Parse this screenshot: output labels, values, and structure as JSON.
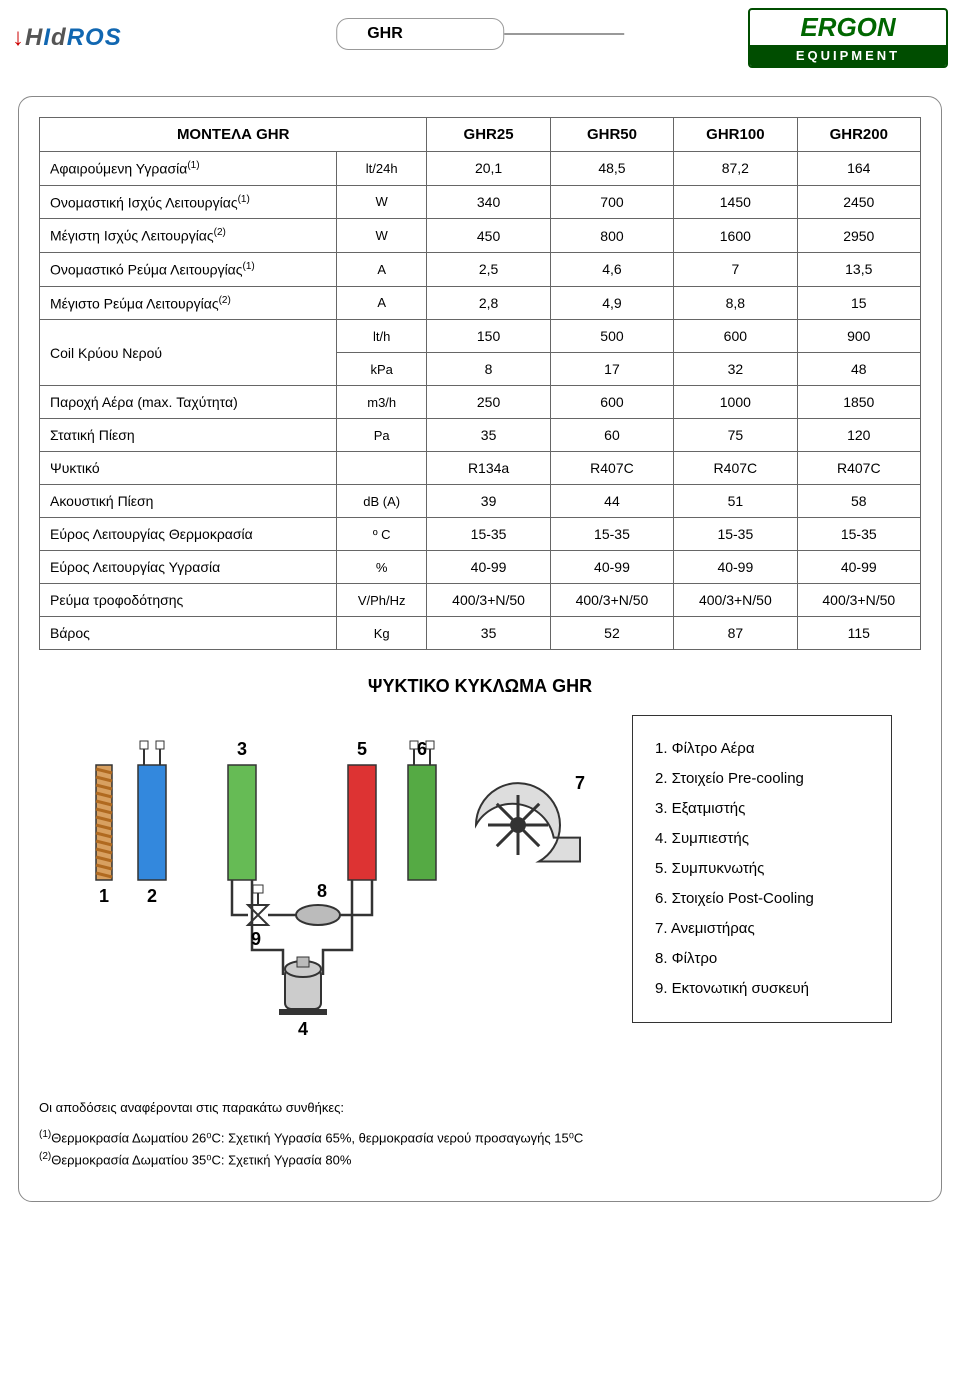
{
  "header": {
    "hidros_logo_html": "<span style='color:#c00;'>&#8595;</span><span style='color:#555;'>H</span><span style='color:#1167b1;'>I</span><span style='color:#555;'>d</span><span style='color:#1167b1;'>ROS</span>",
    "title": "GHR",
    "ergon_top": "ERGON",
    "ergon_bottom": "EQUIPMENT"
  },
  "table": {
    "header_col0": "ΜΟΝΤΕΛΑ GHR",
    "models": [
      "GHR25",
      "GHR50",
      "GHR100",
      "GHR200"
    ],
    "rows": [
      {
        "label": "Αφαιρούμενη Υγρασία",
        "sup": "(1)",
        "unit": "lt/24h",
        "vals": [
          "20,1",
          "48,5",
          "87,2",
          "164"
        ]
      },
      {
        "label": "Ονομαστική Ισχύς Λειτουργίας",
        "sup": "(1)",
        "unit": "W",
        "vals": [
          "340",
          "700",
          "1450",
          "2450"
        ]
      },
      {
        "label": "Μέγιστη Ισχύς Λειτουργίας",
        "sup": "(2)",
        "unit": "W",
        "vals": [
          "450",
          "800",
          "1600",
          "2950"
        ]
      },
      {
        "label": "Ονομαστικό Ρεύμα Λειτουργίας",
        "sup": "(1)",
        "unit": "A",
        "vals": [
          "2,5",
          "4,6",
          "7",
          "13,5"
        ]
      },
      {
        "label": "Μέγιστο Ρεύμα Λειτουργίας",
        "sup": "(2)",
        "unit": "A",
        "vals": [
          "2,8",
          "4,9",
          "8,8",
          "15"
        ]
      }
    ],
    "coil": {
      "label": "Coil Κρύου Νερού",
      "r1": {
        "unit": "lt/h",
        "vals": [
          "150",
          "500",
          "600",
          "900"
        ]
      },
      "r2": {
        "unit": "kPa",
        "vals": [
          "8",
          "17",
          "32",
          "48"
        ]
      }
    },
    "rows2": [
      {
        "label": "Παροχή Αέρα (max. Ταχύτητα)",
        "unit": "m3/h",
        "vals": [
          "250",
          "600",
          "1000",
          "1850"
        ]
      },
      {
        "label": "Στατική Πίεση",
        "unit": "Pa",
        "vals": [
          "35",
          "60",
          "75",
          "120"
        ]
      },
      {
        "label": "Ψυκτικό",
        "unit": "",
        "vals": [
          "R134a",
          "R407C",
          "R407C",
          "R407C"
        ]
      },
      {
        "label": "Ακουστική Πίεση",
        "unit": "dB (A)",
        "vals": [
          "39",
          "44",
          "51",
          "58"
        ]
      },
      {
        "label": "Εύρος Λειτουργίας Θερμοκρασία",
        "unit": "º C",
        "vals": [
          "15-35",
          "15-35",
          "15-35",
          "15-35"
        ]
      },
      {
        "label": "Εύρος  Λειτουργίας Υγρασία",
        "unit": "%",
        "vals": [
          "40-99",
          "40-99",
          "40-99",
          "40-99"
        ]
      },
      {
        "label": "Ρεύμα τροφοδότησης",
        "unit": "V/Ph/Hz",
        "vals": [
          "400/3+N/50",
          "400/3+N/50",
          "400/3+N/50",
          "400/3+N/50"
        ]
      },
      {
        "label": "Βάρος",
        "unit": "Kg",
        "vals": [
          "35",
          "52",
          "87",
          "115"
        ]
      }
    ]
  },
  "diagram": {
    "title": "ΨΥΚΤΙΚΟ ΚΥΚΛΩΜΑ GHR",
    "colors": {
      "filter_outer": "#d8a060",
      "filter_inner": "#b06a20",
      "precool": "#3388dd",
      "evap": "#66bb55",
      "compressor_fill": "#cccccc",
      "condenser": "#dd3333",
      "postcool": "#55aa44",
      "fan_fill": "#dddddd",
      "pipe": "#333333",
      "text": "#000000",
      "device_fill": "#bbbbbb"
    },
    "labels": {
      "n1": "1",
      "n2": "2",
      "n3": "3",
      "n4": "4",
      "n5": "5",
      "n6": "6",
      "n7": "7",
      "n8": "8",
      "n9": "9"
    },
    "legend": [
      "1. Φίλτρο Αέρα",
      "2. Στοιχείο Pre-cooling",
      "3. Εξατμιστής",
      "4. Συμπιεστής",
      "5. Συμπυκνωτής",
      "6. Στοιχείο Post-Cooling",
      "7. Ανεμιστήρας",
      "8. Φίλτρο",
      "9. Εκτονωτική συσκευή"
    ]
  },
  "footnotes": {
    "intro": "Οι αποδόσεις αναφέρονται στις παρακάτω συνθήκες:",
    "l1_pre": "(1)",
    "l1": "Θερμοκρασία Δωματίου 26⁰C: Σχετική Υγρασία 65%, θερμοκρασία νερού προσαγωγής 15⁰C",
    "l2_pre": "(2)",
    "l2": "Θερμοκρασία Δωματίου 35⁰C: Σχετική Υγρασία 80%"
  }
}
